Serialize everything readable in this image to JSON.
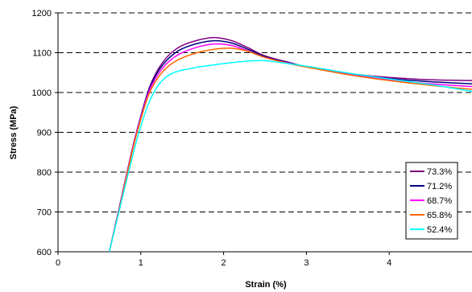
{
  "chart_data": {
    "type": "line",
    "title": "",
    "xlabel": "Strain (%)",
    "ylabel": "Stress (MPa)",
    "xlim": [
      0,
      5
    ],
    "ylim": [
      600,
      1200
    ],
    "x_ticks": [
      "0",
      "1",
      "2",
      "3",
      "4"
    ],
    "y_ticks": [
      "600",
      "700",
      "800",
      "900",
      "1000",
      "1100",
      "1200"
    ],
    "grid": "horizontal dashed",
    "legend_position": "bottom-right",
    "series": [
      {
        "name": "73.3%",
        "color": "#800080",
        "x": [
          0.62,
          0.75,
          0.9,
          1.0,
          1.1,
          1.2,
          1.3,
          1.4,
          1.5,
          1.7,
          1.9,
          2.1,
          2.3,
          2.5,
          2.8,
          3.0,
          3.5,
          4.0,
          4.5,
          5.0
        ],
        "y": [
          600,
          720,
          860,
          940,
          1010,
          1055,
          1085,
          1105,
          1118,
          1132,
          1138,
          1130,
          1112,
          1092,
          1075,
          1065,
          1048,
          1038,
          1032,
          1030
        ]
      },
      {
        "name": "71.2%",
        "color": "#000080",
        "x": [
          0.62,
          0.75,
          0.9,
          1.0,
          1.1,
          1.2,
          1.3,
          1.4,
          1.5,
          1.7,
          1.9,
          2.1,
          2.3,
          2.5,
          2.8,
          3.0,
          3.5,
          4.0,
          4.5,
          5.0
        ],
        "y": [
          600,
          720,
          860,
          940,
          1008,
          1050,
          1078,
          1097,
          1110,
          1124,
          1130,
          1124,
          1108,
          1090,
          1074,
          1065,
          1047,
          1035,
          1027,
          1022
        ]
      },
      {
        "name": "68.7%",
        "color": "#ff00ff",
        "x": [
          0.62,
          0.75,
          0.9,
          1.0,
          1.1,
          1.2,
          1.3,
          1.4,
          1.5,
          1.7,
          1.9,
          2.1,
          2.3,
          2.5,
          2.8,
          3.0,
          3.5,
          4.0,
          4.5,
          5.0
        ],
        "y": [
          600,
          718,
          858,
          937,
          1003,
          1043,
          1070,
          1088,
          1100,
          1115,
          1122,
          1118,
          1104,
          1088,
          1073,
          1065,
          1046,
          1032,
          1022,
          1015
        ]
      },
      {
        "name": "65.8%",
        "color": "#ff6600",
        "x": [
          0.62,
          0.75,
          0.9,
          1.0,
          1.1,
          1.2,
          1.3,
          1.4,
          1.5,
          1.7,
          1.9,
          2.1,
          2.3,
          2.5,
          2.8,
          3.0,
          3.5,
          4.0,
          4.5,
          5.0
        ],
        "y": [
          600,
          716,
          855,
          933,
          997,
          1035,
          1060,
          1076,
          1087,
          1101,
          1109,
          1111,
          1103,
          1088,
          1072,
          1064,
          1045,
          1030,
          1018,
          1008
        ]
      },
      {
        "name": "52.4%",
        "color": "#00ffff",
        "x": [
          0.62,
          0.75,
          0.9,
          1.0,
          1.1,
          1.2,
          1.3,
          1.4,
          1.5,
          1.7,
          1.9,
          2.1,
          2.3,
          2.5,
          2.8,
          3.0,
          3.5,
          4.0,
          4.5,
          5.0
        ],
        "y": [
          600,
          712,
          840,
          915,
          975,
          1015,
          1038,
          1050,
          1056,
          1064,
          1070,
          1075,
          1079,
          1080,
          1072,
          1066,
          1049,
          1034,
          1020,
          1003
        ]
      }
    ]
  }
}
